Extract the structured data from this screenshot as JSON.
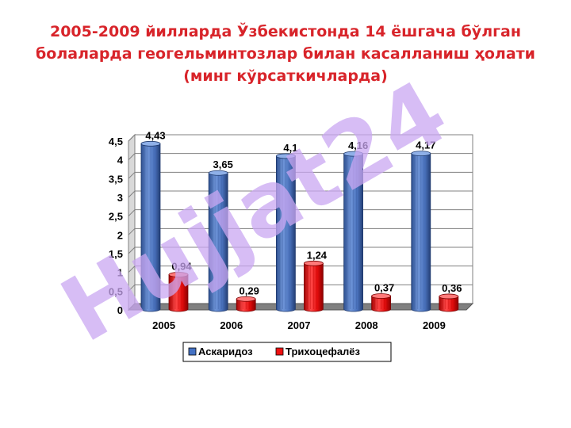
{
  "title_lines": [
    "2005-2009 йилларда Ўзбекистонда 14 ёшгача бўлган",
    "болаларда геогельминтозлар билан касалланиш ҳолати",
    "(минг кўрсаткичларда)"
  ],
  "watermark": "Hujjat24",
  "colors": {
    "askaridoz": "#4472c4",
    "trichocephalez": "#ee1111",
    "title": "#d8242a",
    "watermark": "#c9a7f2"
  },
  "chart_data": {
    "type": "bar",
    "title": "2005-2009 йилларда Ўзбекистонда 14 ёшгача бўлган болаларда геогельминтозлар билан касалланиш ҳолати (минг кўрсаткичларда)",
    "categories": [
      "2005",
      "2006",
      "2007",
      "2008",
      "2009"
    ],
    "series": [
      {
        "name": "Аскаридоз",
        "values": [
          4.43,
          3.65,
          4.1,
          4.16,
          4.17
        ],
        "labels": [
          "4,43",
          "3,65",
          "4,1",
          "4,16",
          "4,17"
        ]
      },
      {
        "name": "Трихоцефалёз",
        "values": [
          0.94,
          0.29,
          1.24,
          0.37,
          0.36
        ],
        "labels": [
          "0,94",
          "0,29",
          "1,24",
          "0,37",
          "0,36"
        ]
      }
    ],
    "yticks": [
      "0",
      "0,5",
      "1",
      "1,5",
      "2",
      "2,5",
      "3",
      "3,5",
      "4",
      "4,5"
    ],
    "ylim": [
      0,
      4.5
    ],
    "grid": true,
    "legend_position": "bottom",
    "style": "3d-cylinder"
  }
}
